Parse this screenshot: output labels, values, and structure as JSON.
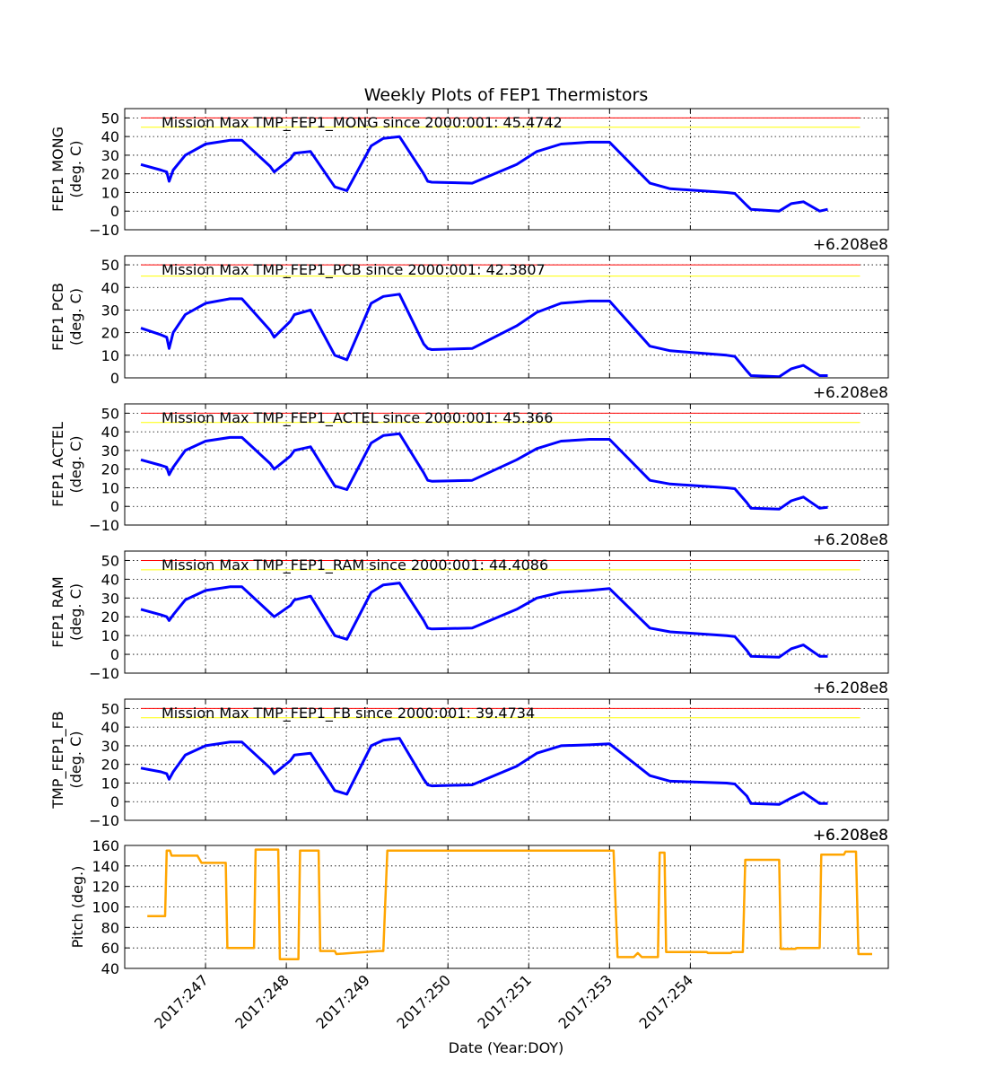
{
  "title": "Weekly Plots of FEP1 Thermistors",
  "xlabel": "Date (Year:DOY)",
  "x_ticks": [
    "2017:247",
    "2017:248",
    "2017:249",
    "2017:250",
    "2017:251",
    "2017:253",
    "2017:254"
  ],
  "offset_label": "+6.208e8",
  "colors": {
    "temp": "#0000ff",
    "pitch": "#ffa500",
    "red_limit": "#ff0000",
    "yellow_limit": "#ffff00",
    "grid": "#000000"
  },
  "chart_data": [
    {
      "type": "line",
      "ylabel": "FEP1 MONG\n(deg. C)",
      "annotation": "Mission Max TMP_FEP1_MONG since 2000:001: 45.4742",
      "ylim": [
        -10,
        55
      ],
      "yticks": [
        -10,
        0,
        10,
        20,
        30,
        40,
        50
      ],
      "red_limit": 50,
      "yellow_limit": 45,
      "series": [
        {
          "x": [
            0.2,
            0.45,
            0.52,
            0.55,
            0.6,
            0.75,
            1.0,
            1.3,
            1.45,
            1.8,
            1.85,
            2.05,
            2.1,
            2.3,
            2.6,
            2.75,
            3.05,
            3.2,
            3.4,
            3.7,
            3.75,
            3.8,
            4.3,
            4.85,
            5.1,
            5.4,
            5.75,
            6.0,
            6.5,
            6.75,
            7.45,
            7.55,
            7.7,
            7.75,
            8.1,
            8.25,
            8.4,
            8.6,
            8.7
          ],
          "y": [
            25,
            22,
            21,
            16,
            22,
            30,
            36,
            38,
            38,
            24,
            21,
            28,
            31,
            32,
            13,
            11,
            35,
            39,
            40,
            20,
            16,
            15.5,
            15,
            25,
            32,
            36,
            37,
            37,
            15,
            12,
            10,
            9.5,
            3,
            1,
            0,
            4,
            5,
            0,
            1
          ]
        }
      ]
    },
    {
      "type": "line",
      "ylabel": "FEP1 PCB\n(deg. C)",
      "annotation": "Mission Max TMP_FEP1_PCB since 2000:001: 42.3807",
      "ylim": [
        0,
        54
      ],
      "yticks": [
        0,
        10,
        20,
        30,
        40,
        50
      ],
      "red_limit": 50,
      "yellow_limit": 45,
      "series": [
        {
          "x": [
            0.2,
            0.45,
            0.52,
            0.55,
            0.6,
            0.75,
            1.0,
            1.3,
            1.45,
            1.8,
            1.85,
            2.05,
            2.1,
            2.3,
            2.6,
            2.75,
            3.05,
            3.2,
            3.4,
            3.7,
            3.75,
            3.8,
            4.3,
            4.85,
            5.1,
            5.4,
            5.75,
            6.0,
            6.5,
            6.75,
            7.45,
            7.55,
            7.7,
            7.75,
            8.1,
            8.25,
            8.4,
            8.6,
            8.7
          ],
          "y": [
            22,
            19,
            18,
            13,
            20,
            28,
            33,
            35,
            35,
            21,
            18,
            25,
            28,
            30,
            10,
            8,
            33,
            36,
            37,
            15,
            13,
            12.5,
            13,
            23,
            29,
            33,
            34,
            34,
            14,
            12,
            10,
            9.5,
            3,
            1,
            0.5,
            4,
            5.5,
            1,
            1
          ]
        }
      ]
    },
    {
      "type": "line",
      "ylabel": "FEP1 ACTEL\n(deg. C)",
      "annotation": "Mission Max TMP_FEP1_ACTEL since 2000:001: 45.366",
      "ylim": [
        -10,
        55
      ],
      "yticks": [
        -10,
        0,
        10,
        20,
        30,
        40,
        50
      ],
      "red_limit": 50,
      "yellow_limit": 45,
      "series": [
        {
          "x": [
            0.2,
            0.45,
            0.52,
            0.55,
            0.6,
            0.75,
            1.0,
            1.3,
            1.45,
            1.8,
            1.85,
            2.05,
            2.1,
            2.3,
            2.6,
            2.75,
            3.05,
            3.2,
            3.4,
            3.7,
            3.75,
            3.8,
            4.3,
            4.85,
            5.1,
            5.4,
            5.75,
            6.0,
            6.5,
            6.75,
            7.45,
            7.55,
            7.7,
            7.75,
            8.1,
            8.25,
            8.4,
            8.6,
            8.7
          ],
          "y": [
            25,
            22,
            21,
            17,
            21,
            30,
            35,
            37,
            37,
            23,
            20,
            27,
            30,
            32,
            11,
            9,
            34,
            38,
            39,
            18,
            14,
            13.5,
            14,
            25,
            31,
            35,
            36,
            36,
            14,
            12,
            10,
            9.5,
            2,
            -1,
            -1.5,
            3,
            5,
            -1,
            -0.5
          ]
        }
      ]
    },
    {
      "type": "line",
      "ylabel": "FEP1 RAM\n(deg. C)",
      "annotation": "Mission Max TMP_FEP1_RAM since 2000:001: 44.4086",
      "ylim": [
        -10,
        55
      ],
      "yticks": [
        -10,
        0,
        10,
        20,
        30,
        40,
        50
      ],
      "red_limit": 50,
      "yellow_limit": 45,
      "series": [
        {
          "x": [
            0.2,
            0.45,
            0.52,
            0.55,
            0.6,
            0.75,
            1.0,
            1.3,
            1.45,
            1.8,
            1.85,
            2.05,
            2.1,
            2.3,
            2.6,
            2.75,
            3.05,
            3.2,
            3.4,
            3.7,
            3.75,
            3.8,
            4.3,
            4.85,
            5.1,
            5.4,
            5.75,
            6.0,
            6.5,
            6.75,
            7.45,
            7.55,
            7.7,
            7.75,
            8.1,
            8.25,
            8.4,
            8.6,
            8.7
          ],
          "y": [
            24,
            21,
            20,
            18,
            21,
            29,
            34,
            36,
            36,
            22,
            20,
            26,
            29,
            31,
            10,
            8,
            33,
            37,
            38,
            18,
            14,
            13.5,
            14,
            24,
            30,
            33,
            34,
            35,
            14,
            12,
            10,
            9.5,
            2,
            -1,
            -1.5,
            3,
            5,
            -1,
            -1
          ]
        }
      ]
    },
    {
      "type": "line",
      "ylabel": "TMP_FEP1_FB\n(deg. C)",
      "annotation": "Mission Max TMP_FEP1_FB since 2000:001: 39.4734",
      "ylim": [
        -10,
        55
      ],
      "yticks": [
        -10,
        0,
        10,
        20,
        30,
        40,
        50
      ],
      "red_limit": 50,
      "yellow_limit": 45,
      "series": [
        {
          "x": [
            0.2,
            0.45,
            0.52,
            0.55,
            0.6,
            0.75,
            1.0,
            1.3,
            1.45,
            1.8,
            1.85,
            2.05,
            2.1,
            2.3,
            2.6,
            2.75,
            3.05,
            3.2,
            3.4,
            3.7,
            3.75,
            3.8,
            4.3,
            4.85,
            5.1,
            5.4,
            5.75,
            6.0,
            6.5,
            6.75,
            7.45,
            7.55,
            7.7,
            7.75,
            8.1,
            8.25,
            8.4,
            8.6,
            8.7
          ],
          "y": [
            18,
            16,
            15,
            12,
            16,
            25,
            30,
            32,
            32,
            18,
            15,
            22,
            25,
            26,
            6,
            4,
            30,
            33,
            34,
            12,
            9,
            8.5,
            9,
            19,
            26,
            30,
            30.5,
            31,
            14,
            11,
            10,
            9.5,
            3,
            -1,
            -1.5,
            2,
            5,
            -1,
            -1
          ]
        }
      ]
    },
    {
      "type": "line",
      "ylabel": "Pitch (deg.)",
      "annotation": "",
      "ylim": [
        40,
        160
      ],
      "yticks": [
        40,
        60,
        80,
        100,
        120,
        140,
        160
      ],
      "series": [
        {
          "x": [
            0.28,
            0.5,
            0.52,
            0.56,
            0.58,
            0.9,
            0.95,
            1.25,
            1.27,
            1.6,
            1.62,
            1.9,
            1.92,
            2.15,
            2.17,
            2.4,
            2.42,
            2.6,
            2.62,
            3.15,
            3.2,
            3.25,
            6.0,
            6.05,
            6.1,
            6.3,
            6.35,
            6.4,
            6.6,
            6.62,
            6.68,
            6.7,
            7.2,
            7.22,
            7.5,
            7.52,
            7.65,
            7.68,
            8.1,
            8.12,
            8.3,
            8.32,
            8.6,
            8.62,
            8.9,
            8.92,
            9.05,
            9.08,
            9.25
          ],
          "y": [
            91,
            91,
            155,
            155,
            150,
            150,
            143,
            143,
            60,
            60,
            156,
            156,
            49,
            49,
            155,
            155,
            57,
            57,
            54,
            57,
            57,
            155,
            155,
            155,
            51,
            51,
            55,
            51,
            51,
            153,
            153,
            56,
            56,
            55,
            55,
            56,
            56,
            146,
            146,
            59,
            59,
            60,
            60,
            151,
            151,
            154,
            154,
            54,
            54
          ]
        }
      ]
    }
  ]
}
